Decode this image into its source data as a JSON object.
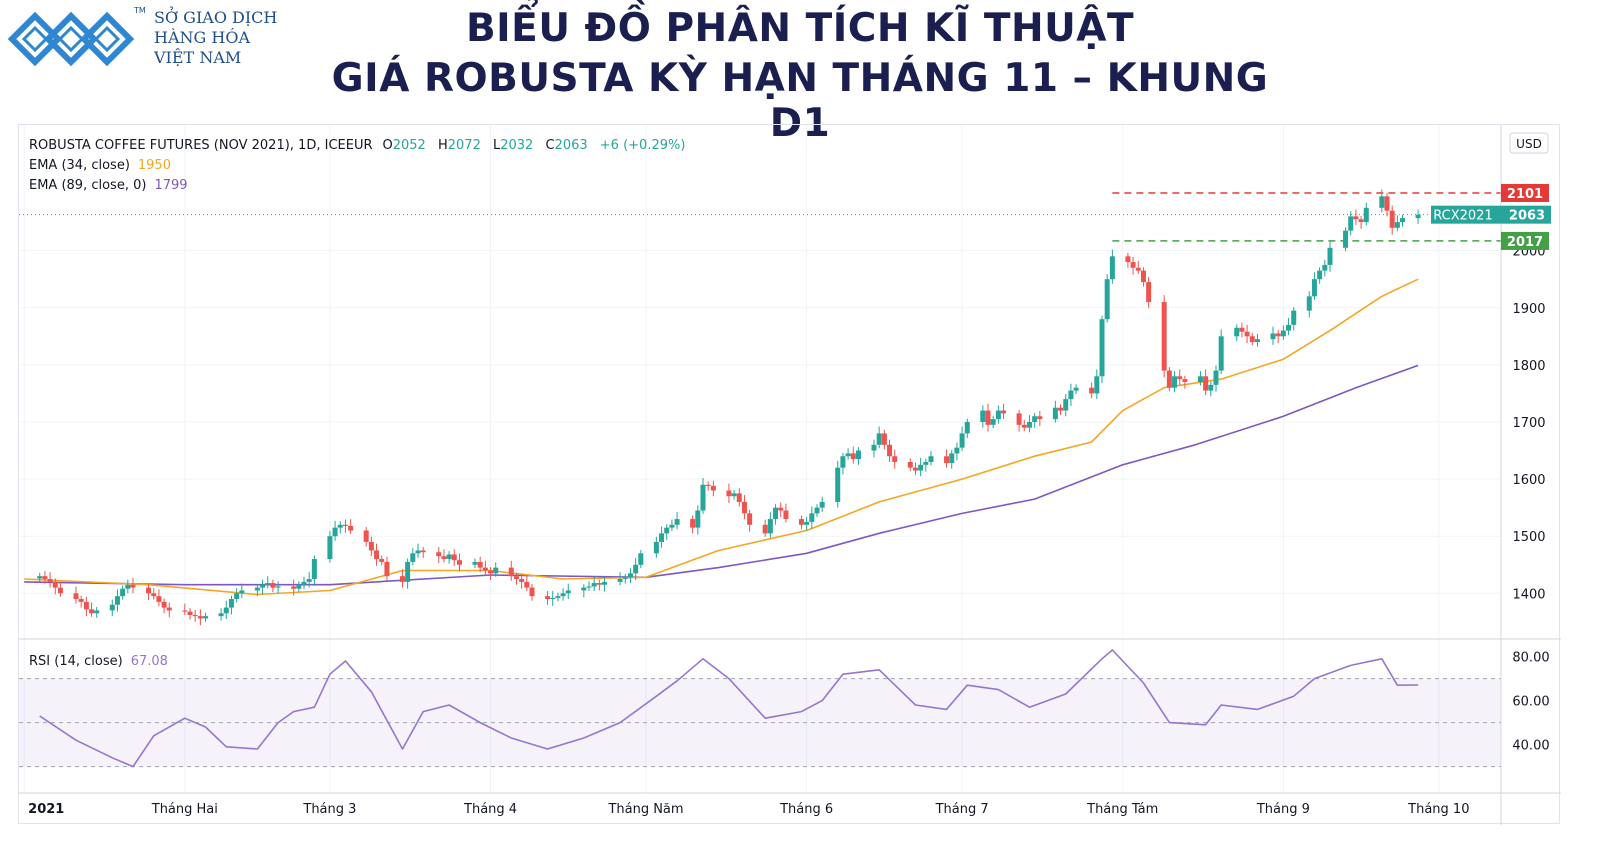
{
  "header": {
    "logo_lines": [
      "SỞ GIAO DỊCH",
      "HÀNG HÓA",
      "VIỆT NAM"
    ],
    "logo_tm": "TM",
    "title_line1": "BIỂU ĐỒ PHÂN TÍCH KĨ THUẬT",
    "title_line2": "GIÁ ROBUSTA KỲ HẠN THÁNG 11 – KHUNG D1"
  },
  "colors": {
    "up": "#26a69a",
    "down": "#ef5350",
    "ema34": "#f5a623",
    "ema89": "#7e57c2",
    "rsi": "#9575cd",
    "resistance": "#e53935",
    "support": "#43a047",
    "price_badge": "#26a69a"
  },
  "chart_data": [
    {
      "type": "candlestick",
      "legend": {
        "symbol": "ROBUSTA COFFEE FUTURES (NOV 2021), 1D, ICEEUR",
        "o_label": "O",
        "o_value": "2052",
        "h_label": "H",
        "h_value": "2072",
        "l_label": "L",
        "l_value": "2032",
        "c_label": "C",
        "c_value": "2063",
        "change": "+6 (+0.29%)",
        "ema34_label": "EMA (34, close)",
        "ema34_value": "1950",
        "ema89_label": "EMA (89, close, 0)",
        "ema89_value": "1799"
      },
      "currency": "USD",
      "y_axis_ticks": [
        1400,
        1500,
        1600,
        1700,
        1800,
        1900,
        2000
      ],
      "y_range": [
        1320,
        2220
      ],
      "x_axis_labels": [
        "2021",
        "Tháng Hai",
        "Tháng 3",
        "Tháng 4",
        "Tháng Năm",
        "Tháng 6",
        "Tháng 7",
        "Tháng Tám",
        "Tháng 9",
        "Tháng 10"
      ],
      "x_axis_label_dates": [
        "2021-01-01",
        "2021-02-01",
        "2021-03-01",
        "2021-04-01",
        "2021-05-01",
        "2021-06-01",
        "2021-07-01",
        "2021-08-01",
        "2021-09-01",
        "2021-10-01"
      ],
      "date_range": [
        "2020-12-31",
        "2021-10-13"
      ],
      "close_series": [
        [
          "2021-01-04",
          1430
        ],
        [
          "2021-01-05",
          1425
        ],
        [
          "2021-01-06",
          1420
        ],
        [
          "2021-01-07",
          1410
        ],
        [
          "2021-01-08",
          1400
        ],
        [
          "2021-01-11",
          1390
        ],
        [
          "2021-01-12",
          1385
        ],
        [
          "2021-01-13",
          1372
        ],
        [
          "2021-01-14",
          1365
        ],
        [
          "2021-01-15",
          1370
        ],
        [
          "2021-01-18",
          1380
        ],
        [
          "2021-01-19",
          1395
        ],
        [
          "2021-01-20",
          1408
        ],
        [
          "2021-01-21",
          1415
        ],
        [
          "2021-01-22",
          1410
        ],
        [
          "2021-01-25",
          1400
        ],
        [
          "2021-01-26",
          1395
        ],
        [
          "2021-01-27",
          1385
        ],
        [
          "2021-01-28",
          1375
        ],
        [
          "2021-01-29",
          1370
        ],
        [
          "2021-02-01",
          1368
        ],
        [
          "2021-02-02",
          1362
        ],
        [
          "2021-02-03",
          1360
        ],
        [
          "2021-02-04",
          1356
        ],
        [
          "2021-02-05",
          1360
        ],
        [
          "2021-02-08",
          1365
        ],
        [
          "2021-02-09",
          1375
        ],
        [
          "2021-02-10",
          1390
        ],
        [
          "2021-02-11",
          1400
        ],
        [
          "2021-02-12",
          1405
        ],
        [
          "2021-02-15",
          1410
        ],
        [
          "2021-02-16",
          1415
        ],
        [
          "2021-02-17",
          1418
        ],
        [
          "2021-02-18",
          1410
        ],
        [
          "2021-02-19",
          1412
        ],
        [
          "2021-02-22",
          1408
        ],
        [
          "2021-02-23",
          1415
        ],
        [
          "2021-02-24",
          1420
        ],
        [
          "2021-02-25",
          1425
        ],
        [
          "2021-02-26",
          1460
        ],
        [
          "2021-03-01",
          1500
        ],
        [
          "2021-03-02",
          1515
        ],
        [
          "2021-03-03",
          1520
        ],
        [
          "2021-03-04",
          1518
        ],
        [
          "2021-03-05",
          1510
        ],
        [
          "2021-03-08",
          1490
        ],
        [
          "2021-03-09",
          1475
        ],
        [
          "2021-03-10",
          1460
        ],
        [
          "2021-03-11",
          1455
        ],
        [
          "2021-03-12",
          1430
        ],
        [
          "2021-03-15",
          1420
        ],
        [
          "2021-03-16",
          1455
        ],
        [
          "2021-03-17",
          1470
        ],
        [
          "2021-03-18",
          1475
        ],
        [
          "2021-03-19",
          1472
        ],
        [
          "2021-03-22",
          1465
        ],
        [
          "2021-03-23",
          1460
        ],
        [
          "2021-03-24",
          1468
        ],
        [
          "2021-03-25",
          1458
        ],
        [
          "2021-03-26",
          1450
        ],
        [
          "2021-03-29",
          1455
        ],
        [
          "2021-03-30",
          1445
        ],
        [
          "2021-03-31",
          1440
        ],
        [
          "2021-04-01",
          1435
        ],
        [
          "2021-04-02",
          1445
        ],
        [
          "2021-04-05",
          1430
        ],
        [
          "2021-04-06",
          1425
        ],
        [
          "2021-04-07",
          1420
        ],
        [
          "2021-04-08",
          1410
        ],
        [
          "2021-04-09",
          1395
        ],
        [
          "2021-04-12",
          1390
        ],
        [
          "2021-04-13",
          1392
        ],
        [
          "2021-04-14",
          1395
        ],
        [
          "2021-04-15",
          1400
        ],
        [
          "2021-04-16",
          1405
        ],
        [
          "2021-04-19",
          1410
        ],
        [
          "2021-04-20",
          1412
        ],
        [
          "2021-04-21",
          1418
        ],
        [
          "2021-04-22",
          1415
        ],
        [
          "2021-04-23",
          1420
        ],
        [
          "2021-04-26",
          1425
        ],
        [
          "2021-04-27",
          1428
        ],
        [
          "2021-04-28",
          1435
        ],
        [
          "2021-04-29",
          1450
        ],
        [
          "2021-04-30",
          1470
        ],
        [
          "2021-05-03",
          1490
        ],
        [
          "2021-05-04",
          1505
        ],
        [
          "2021-05-05",
          1515
        ],
        [
          "2021-05-06",
          1520
        ],
        [
          "2021-05-07",
          1530
        ],
        [
          "2021-05-10",
          1515
        ],
        [
          "2021-05-11",
          1545
        ],
        [
          "2021-05-12",
          1590
        ],
        [
          "2021-05-13",
          1588
        ],
        [
          "2021-05-14",
          1580
        ],
        [
          "2021-05-17",
          1570
        ],
        [
          "2021-05-18",
          1575
        ],
        [
          "2021-05-19",
          1560
        ],
        [
          "2021-05-20",
          1540
        ],
        [
          "2021-05-21",
          1520
        ],
        [
          "2021-05-24",
          1505
        ],
        [
          "2021-05-25",
          1530
        ],
        [
          "2021-05-26",
          1550
        ],
        [
          "2021-05-27",
          1545
        ],
        [
          "2021-05-28",
          1530
        ],
        [
          "2021-05-31",
          1520
        ],
        [
          "2021-06-01",
          1525
        ],
        [
          "2021-06-02",
          1540
        ],
        [
          "2021-06-03",
          1550
        ],
        [
          "2021-06-04",
          1560
        ],
        [
          "2021-06-07",
          1620
        ],
        [
          "2021-06-08",
          1640
        ],
        [
          "2021-06-09",
          1645
        ],
        [
          "2021-06-10",
          1635
        ],
        [
          "2021-06-11",
          1650
        ],
        [
          "2021-06-14",
          1660
        ],
        [
          "2021-06-15",
          1680
        ],
        [
          "2021-06-16",
          1660
        ],
        [
          "2021-06-17",
          1640
        ],
        [
          "2021-06-18",
          1630
        ],
        [
          "2021-06-21",
          1620
        ],
        [
          "2021-06-22",
          1615
        ],
        [
          "2021-06-23",
          1625
        ],
        [
          "2021-06-24",
          1630
        ],
        [
          "2021-06-25",
          1640
        ],
        [
          "2021-06-28",
          1628
        ],
        [
          "2021-06-29",
          1645
        ],
        [
          "2021-06-30",
          1655
        ],
        [
          "2021-07-01",
          1680
        ],
        [
          "2021-07-02",
          1700
        ],
        [
          "2021-07-05",
          1720
        ],
        [
          "2021-07-06",
          1695
        ],
        [
          "2021-07-07",
          1705
        ],
        [
          "2021-07-08",
          1720
        ],
        [
          "2021-07-09",
          1715
        ],
        [
          "2021-07-12",
          1695
        ],
        [
          "2021-07-13",
          1690
        ],
        [
          "2021-07-14",
          1700
        ],
        [
          "2021-07-15",
          1710
        ],
        [
          "2021-07-16",
          1705
        ],
        [
          "2021-07-19",
          1725
        ],
        [
          "2021-07-20",
          1720
        ],
        [
          "2021-07-21",
          1740
        ],
        [
          "2021-07-22",
          1755
        ],
        [
          "2021-07-23",
          1760
        ],
        [
          "2021-07-26",
          1750
        ],
        [
          "2021-07-27",
          1780
        ],
        [
          "2021-07-28",
          1880
        ],
        [
          "2021-07-29",
          1950
        ],
        [
          "2021-07-30",
          1990
        ],
        [
          "2021-08-02",
          1980
        ],
        [
          "2021-08-03",
          1970
        ],
        [
          "2021-08-04",
          1965
        ],
        [
          "2021-08-05",
          1945
        ],
        [
          "2021-08-06",
          1910
        ],
        [
          "2021-08-09",
          1790
        ],
        [
          "2021-08-10",
          1760
        ],
        [
          "2021-08-11",
          1780
        ],
        [
          "2021-08-12",
          1775
        ],
        [
          "2021-08-13",
          1770
        ],
        [
          "2021-08-16",
          1780
        ],
        [
          "2021-08-17",
          1755
        ],
        [
          "2021-08-18",
          1765
        ],
        [
          "2021-08-19",
          1790
        ],
        [
          "2021-08-20",
          1850
        ],
        [
          "2021-08-23",
          1865
        ],
        [
          "2021-08-24",
          1858
        ],
        [
          "2021-08-25",
          1850
        ],
        [
          "2021-08-26",
          1840
        ],
        [
          "2021-08-27",
          1845
        ],
        [
          "2021-08-30",
          1855
        ],
        [
          "2021-08-31",
          1850
        ],
        [
          "2021-09-01",
          1860
        ],
        [
          "2021-09-02",
          1870
        ],
        [
          "2021-09-03",
          1895
        ],
        [
          "2021-09-06",
          1920
        ],
        [
          "2021-09-07",
          1950
        ],
        [
          "2021-09-08",
          1965
        ],
        [
          "2021-09-09",
          1975
        ],
        [
          "2021-09-10",
          2005
        ],
        [
          "2021-09-13",
          2035
        ],
        [
          "2021-09-14",
          2060
        ],
        [
          "2021-09-15",
          2055
        ],
        [
          "2021-09-16",
          2050
        ],
        [
          "2021-09-17",
          2075
        ],
        [
          "2021-09-20",
          2095
        ],
        [
          "2021-09-21",
          2070
        ],
        [
          "2021-09-22",
          2040
        ],
        [
          "2021-09-23",
          2050
        ],
        [
          "2021-09-24",
          2057
        ],
        [
          "2021-09-27",
          2063
        ]
      ],
      "ema34_series": [
        [
          "2021-01-01",
          1425
        ],
        [
          "2021-01-25",
          1415
        ],
        [
          "2021-02-15",
          1398
        ],
        [
          "2021-03-01",
          1405
        ],
        [
          "2021-03-15",
          1440
        ],
        [
          "2021-04-01",
          1440
        ],
        [
          "2021-04-15",
          1425
        ],
        [
          "2021-05-01",
          1428
        ],
        [
          "2021-05-15",
          1475
        ],
        [
          "2021-06-01",
          1510
        ],
        [
          "2021-06-15",
          1560
        ],
        [
          "2021-07-01",
          1600
        ],
        [
          "2021-07-15",
          1640
        ],
        [
          "2021-07-26",
          1665
        ],
        [
          "2021-08-01",
          1720
        ],
        [
          "2021-08-09",
          1760
        ],
        [
          "2021-08-20",
          1775
        ],
        [
          "2021-09-01",
          1810
        ],
        [
          "2021-09-10",
          1860
        ],
        [
          "2021-09-20",
          1920
        ],
        [
          "2021-09-27",
          1950
        ]
      ],
      "ema89_series": [
        [
          "2021-01-01",
          1420
        ],
        [
          "2021-02-01",
          1415
        ],
        [
          "2021-03-01",
          1415
        ],
        [
          "2021-04-01",
          1432
        ],
        [
          "2021-05-01",
          1428
        ],
        [
          "2021-05-15",
          1445
        ],
        [
          "2021-06-01",
          1470
        ],
        [
          "2021-06-15",
          1505
        ],
        [
          "2021-07-01",
          1540
        ],
        [
          "2021-07-15",
          1565
        ],
        [
          "2021-08-01",
          1625
        ],
        [
          "2021-08-15",
          1660
        ],
        [
          "2021-09-01",
          1710
        ],
        [
          "2021-09-15",
          1760
        ],
        [
          "2021-09-27",
          1799
        ]
      ],
      "horizontal_levels": [
        {
          "value": 2101,
          "label": "2101",
          "style": "dashed",
          "color_key": "resistance",
          "start_date": "2021-07-30"
        },
        {
          "value": 2017,
          "label": "2017",
          "style": "dashed",
          "color_key": "support",
          "start_date": "2021-07-30"
        }
      ],
      "last_price_badge": {
        "symbol": "RCX2021",
        "value": "2063",
        "price": 2063
      }
    },
    {
      "type": "line",
      "legend": {
        "label": "RSI (14, close)",
        "value": "67.08"
      },
      "y_axis_ticks": [
        "80.00",
        "60.00",
        "40.00"
      ],
      "y_range": [
        18,
        88
      ],
      "band": [
        30,
        70
      ],
      "midline": 50,
      "series": [
        [
          "2021-01-04",
          53
        ],
        [
          "2021-01-11",
          42
        ],
        [
          "2021-01-18",
          34
        ],
        [
          "2021-01-22",
          30
        ],
        [
          "2021-01-26",
          44
        ],
        [
          "2021-02-01",
          52
        ],
        [
          "2021-02-05",
          48
        ],
        [
          "2021-02-09",
          39
        ],
        [
          "2021-02-15",
          38
        ],
        [
          "2021-02-19",
          50
        ],
        [
          "2021-02-22",
          55
        ],
        [
          "2021-02-26",
          57
        ],
        [
          "2021-03-01",
          72
        ],
        [
          "2021-03-04",
          78
        ],
        [
          "2021-03-09",
          64
        ],
        [
          "2021-03-15",
          38
        ],
        [
          "2021-03-19",
          55
        ],
        [
          "2021-03-24",
          58
        ],
        [
          "2021-03-30",
          50
        ],
        [
          "2021-04-05",
          43
        ],
        [
          "2021-04-12",
          38
        ],
        [
          "2021-04-19",
          43
        ],
        [
          "2021-04-26",
          50
        ],
        [
          "2021-05-03",
          62
        ],
        [
          "2021-05-07",
          69
        ],
        [
          "2021-05-12",
          79
        ],
        [
          "2021-05-17",
          70
        ],
        [
          "2021-05-24",
          52
        ],
        [
          "2021-05-31",
          55
        ],
        [
          "2021-06-04",
          60
        ],
        [
          "2021-06-08",
          72
        ],
        [
          "2021-06-15",
          74
        ],
        [
          "2021-06-22",
          58
        ],
        [
          "2021-06-28",
          56
        ],
        [
          "2021-07-02",
          67
        ],
        [
          "2021-07-08",
          65
        ],
        [
          "2021-07-14",
          57
        ],
        [
          "2021-07-21",
          63
        ],
        [
          "2021-07-28",
          79
        ],
        [
          "2021-07-30",
          83
        ],
        [
          "2021-08-05",
          68
        ],
        [
          "2021-08-10",
          50
        ],
        [
          "2021-08-17",
          49
        ],
        [
          "2021-08-20",
          58
        ],
        [
          "2021-08-27",
          56
        ],
        [
          "2021-09-03",
          62
        ],
        [
          "2021-09-07",
          70
        ],
        [
          "2021-09-14",
          76
        ],
        [
          "2021-09-20",
          79
        ],
        [
          "2021-09-23",
          67
        ],
        [
          "2021-09-27",
          67.08
        ]
      ]
    }
  ]
}
